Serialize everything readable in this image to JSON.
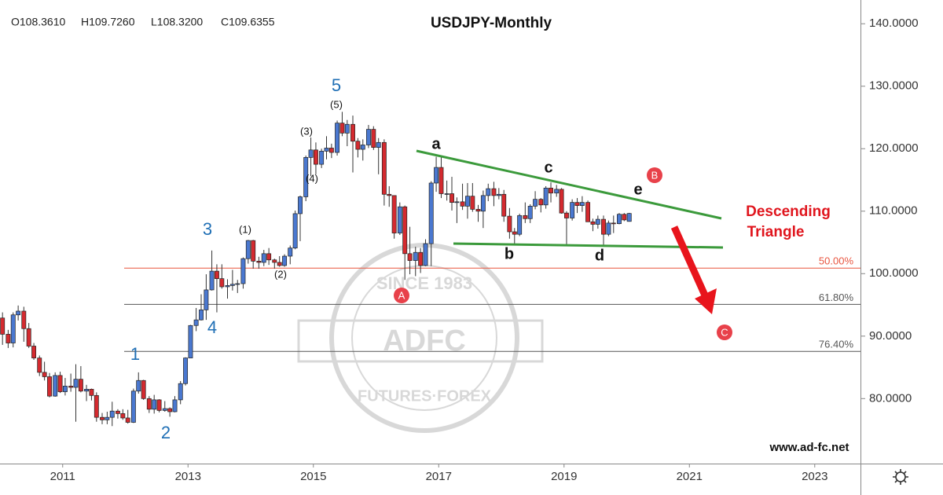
{
  "chart_data": {
    "type": "candlestick",
    "title": "USDJPY-Monthly",
    "ohlc_readout": [
      "O108.3610",
      "H109.7260",
      "L108.3200",
      "C109.6355"
    ],
    "up_color": "#4a78d0",
    "down_color": "#d42a2f",
    "x": [
      2010.04,
      2010.13,
      2010.21,
      2010.29,
      2010.38,
      2010.46,
      2010.54,
      2010.63,
      2010.71,
      2010.79,
      2010.88,
      2010.96,
      2011.04,
      2011.13,
      2011.21,
      2011.29,
      2011.38,
      2011.46,
      2011.54,
      2011.63,
      2011.71,
      2011.79,
      2011.88,
      2011.96,
      2012.04,
      2012.13,
      2012.21,
      2012.29,
      2012.38,
      2012.46,
      2012.54,
      2012.63,
      2012.71,
      2012.79,
      2012.88,
      2012.96,
      2013.04,
      2013.13,
      2013.21,
      2013.29,
      2013.38,
      2013.46,
      2013.54,
      2013.63,
      2013.71,
      2013.79,
      2013.88,
      2013.96,
      2014.04,
      2014.13,
      2014.21,
      2014.29,
      2014.38,
      2014.46,
      2014.54,
      2014.63,
      2014.71,
      2014.79,
      2014.88,
      2014.96,
      2015.04,
      2015.13,
      2015.21,
      2015.29,
      2015.38,
      2015.46,
      2015.54,
      2015.63,
      2015.71,
      2015.79,
      2015.88,
      2015.96,
      2016.04,
      2016.13,
      2016.21,
      2016.29,
      2016.38,
      2016.46,
      2016.54,
      2016.63,
      2016.71,
      2016.79,
      2016.88,
      2016.96,
      2017.04,
      2017.13,
      2017.21,
      2017.29,
      2017.38,
      2017.46,
      2017.54,
      2017.63,
      2017.71,
      2017.79,
      2017.88,
      2017.96,
      2018.04,
      2018.13,
      2018.21,
      2018.29,
      2018.38,
      2018.46,
      2018.54,
      2018.63,
      2018.71,
      2018.79,
      2018.88,
      2018.96,
      2019.04,
      2019.13,
      2019.21,
      2019.29,
      2019.38,
      2019.46,
      2019.54,
      2019.63,
      2019.71,
      2019.79,
      2019.88,
      2019.96,
      2020.04
    ],
    "open": [
      92.9,
      90.3,
      88.9,
      93.4,
      94.0,
      91.2,
      88.4,
      86.5,
      84.2,
      83.5,
      80.4,
      83.7,
      81.1,
      82.0,
      81.8,
      83.1,
      81.2,
      81.5,
      80.5,
      77.0,
      76.6,
      77.0,
      78.0,
      77.6,
      76.9,
      76.2,
      81.2,
      82.9,
      80.0,
      78.3,
      79.8,
      78.1,
      78.4,
      77.9,
      79.8,
      82.4,
      86.5,
      91.7,
      92.6,
      94.2,
      97.4,
      100.4,
      99.2,
      97.9,
      98.1,
      98.3,
      98.4,
      102.4,
      105.3,
      102.0,
      101.8,
      103.2,
      102.2,
      101.8,
      101.3,
      102.8,
      104.1,
      109.6,
      112.3,
      118.6,
      119.8,
      117.5,
      119.6,
      120.1,
      119.4,
      124.1,
      122.5,
      123.9,
      121.2,
      119.9,
      120.6,
      123.1,
      120.2,
      121.0,
      112.7,
      112.5,
      106.5,
      110.7,
      103.2,
      102.1,
      103.4,
      101.3,
      104.8,
      114.5,
      117.0,
      112.8,
      112.8,
      111.4,
      111.5,
      110.8,
      112.4,
      110.3,
      110.0,
      112.5,
      113.6,
      112.5,
      112.7,
      109.2,
      106.7,
      106.3,
      109.3,
      108.8,
      110.8,
      111.9,
      111.0,
      113.7,
      112.9,
      113.5,
      109.7,
      108.9,
      111.4,
      110.9,
      111.4,
      108.3,
      107.9,
      108.7,
      106.3,
      108.1,
      108.0,
      109.5,
      108.361
    ],
    "high": [
      93.8,
      91.0,
      93.8,
      94.9,
      94.7,
      92.1,
      88.9,
      86.9,
      85.9,
      84.1,
      84.2,
      84.3,
      83.3,
      84.0,
      85.5,
      85.2,
      82.2,
      81.6,
      81.0,
      77.7,
      77.9,
      79.5,
      78.3,
      78.3,
      78.2,
      81.6,
      84.2,
      83.0,
      80.4,
      80.6,
      79.9,
      79.6,
      78.6,
      80.4,
      82.8,
      86.6,
      91.8,
      94.5,
      96.7,
      99.9,
      103.7,
      101.5,
      101.5,
      99.1,
      100.6,
      99.0,
      102.6,
      105.4,
      105.4,
      102.7,
      103.8,
      104.1,
      102.4,
      102.8,
      103.1,
      104.5,
      110.1,
      112.5,
      118.9,
      121.8,
      121.0,
      120.0,
      122.0,
      120.8,
      124.5,
      125.9,
      124.6,
      125.3,
      121.7,
      121.5,
      123.8,
      123.6,
      121.7,
      121.5,
      114.0,
      112.0,
      111.4,
      110.9,
      107.5,
      104.3,
      104.1,
      105.5,
      114.8,
      118.7,
      118.6,
      114.9,
      115.5,
      112.2,
      114.4,
      114.5,
      114.5,
      111.0,
      113.3,
      114.4,
      114.7,
      113.7,
      113.4,
      110.5,
      107.3,
      109.6,
      111.4,
      111.1,
      113.2,
      112.1,
      114.0,
      114.6,
      114.2,
      113.7,
      110.0,
      111.9,
      112.1,
      112.4,
      111.7,
      108.8,
      109.3,
      109.3,
      108.5,
      109.3,
      109.7,
      109.7,
      109.726
    ],
    "low": [
      88.6,
      88.1,
      88.2,
      92.5,
      89.1,
      88.1,
      86.2,
      83.6,
      82.9,
      80.2,
      80.3,
      80.9,
      80.5,
      81.1,
      76.3,
      81.0,
      79.6,
      79.7,
      76.3,
      75.9,
      75.9,
      75.6,
      76.8,
      76.6,
      76.0,
      76.1,
      80.8,
      79.8,
      77.7,
      77.6,
      77.8,
      77.9,
      77.1,
      77.8,
      79.1,
      82.1,
      86.5,
      90.8,
      92.5,
      92.6,
      97.3,
      93.8,
      97.6,
      96.0,
      97.3,
      96.9,
      97.6,
      101.6,
      100.8,
      100.8,
      101.2,
      101.4,
      100.8,
      101.1,
      101.1,
      101.5,
      103.9,
      105.2,
      111.6,
      115.6,
      115.9,
      116.9,
      118.3,
      118.5,
      118.9,
      122.0,
      120.4,
      116.2,
      118.6,
      118.1,
      120.1,
      119.8,
      115.9,
      110.9,
      110.7,
      105.6,
      106.2,
      99.0,
      99.9,
      99.6,
      100.1,
      101.2,
      101.2,
      113.1,
      112.1,
      111.7,
      110.1,
      108.1,
      110.2,
      108.8,
      109.9,
      108.3,
      107.3,
      111.6,
      110.8,
      111.9,
      108.3,
      105.6,
      104.6,
      106.0,
      108.1,
      108.1,
      110.3,
      109.8,
      110.4,
      111.4,
      112.3,
      109.6,
      104.7,
      108.5,
      109.7,
      109.9,
      108.3,
      106.8,
      107.2,
      104.5,
      106.0,
      106.5,
      107.9,
      108.4,
      108.32
    ],
    "close": [
      90.3,
      88.9,
      93.4,
      94.0,
      91.2,
      88.4,
      86.5,
      84.2,
      83.5,
      80.4,
      83.7,
      81.1,
      82.0,
      81.8,
      83.1,
      81.2,
      81.5,
      80.5,
      77.0,
      76.6,
      77.0,
      78.0,
      77.6,
      76.9,
      76.2,
      81.2,
      82.9,
      80.0,
      78.3,
      79.8,
      78.1,
      78.4,
      77.9,
      79.8,
      82.4,
      86.5,
      91.7,
      92.6,
      94.2,
      97.4,
      100.4,
      99.2,
      97.9,
      98.1,
      98.3,
      98.4,
      102.4,
      105.3,
      102.0,
      101.8,
      103.2,
      102.2,
      101.8,
      101.3,
      102.8,
      104.1,
      109.6,
      112.3,
      118.6,
      119.8,
      117.5,
      119.6,
      120.1,
      119.4,
      124.1,
      122.5,
      123.9,
      121.2,
      119.9,
      120.6,
      123.1,
      120.2,
      121.0,
      112.7,
      112.5,
      106.5,
      110.7,
      103.2,
      102.1,
      103.4,
      101.3,
      104.8,
      114.5,
      117.0,
      112.8,
      112.8,
      111.4,
      111.5,
      110.8,
      112.4,
      110.3,
      110.0,
      112.5,
      113.6,
      112.5,
      112.7,
      109.2,
      106.7,
      106.3,
      109.3,
      108.8,
      110.8,
      111.9,
      111.0,
      113.7,
      112.9,
      113.5,
      109.7,
      108.9,
      111.4,
      110.9,
      111.4,
      108.3,
      107.9,
      108.7,
      106.3,
      108.1,
      108.0,
      109.5,
      108.6,
      109.6355
    ],
    "xlim": [
      2010.0,
      2023.73
    ],
    "xticks": [
      2011,
      2013,
      2015,
      2017,
      2019,
      2021,
      2023
    ],
    "ylim": [
      69.6,
      143.8
    ],
    "yticks": [
      {
        "value": 140,
        "label": "140.0000"
      },
      {
        "value": 130,
        "label": "130.0000"
      },
      {
        "value": 120,
        "label": "120.0000"
      },
      {
        "value": 110,
        "label": "110.0000"
      },
      {
        "value": 100,
        "label": "100.0000"
      },
      {
        "value": 90,
        "label": "90.0000"
      },
      {
        "value": 80,
        "label": "80.0000"
      }
    ],
    "fib_levels": {
      "levels": [
        50,
        61.8,
        76.4
      ],
      "level_labels": [
        "50.00%",
        "61.80%",
        "76.40%"
      ],
      "prices": [
        100.88,
        95.09,
        87.55
      ],
      "colors": [
        "#e8553f",
        "#555555",
        "#555555"
      ]
    },
    "wave_labels": [
      "1",
      "2",
      "3",
      "4",
      "5"
    ],
    "subwave_labels": [
      "(1)",
      "(2)",
      "(3)",
      "(4)",
      "(5)"
    ],
    "triangle_labels": [
      "a",
      "b",
      "c",
      "d",
      "e"
    ],
    "abc_labels": [
      "A",
      "B",
      "C"
    ],
    "pattern_label": [
      "Descending",
      "Triangle"
    ],
    "watermark": [
      "SINCE 1983",
      "ADFC",
      "FUTURES·FOREX"
    ],
    "website": "www.ad-fc.net"
  }
}
